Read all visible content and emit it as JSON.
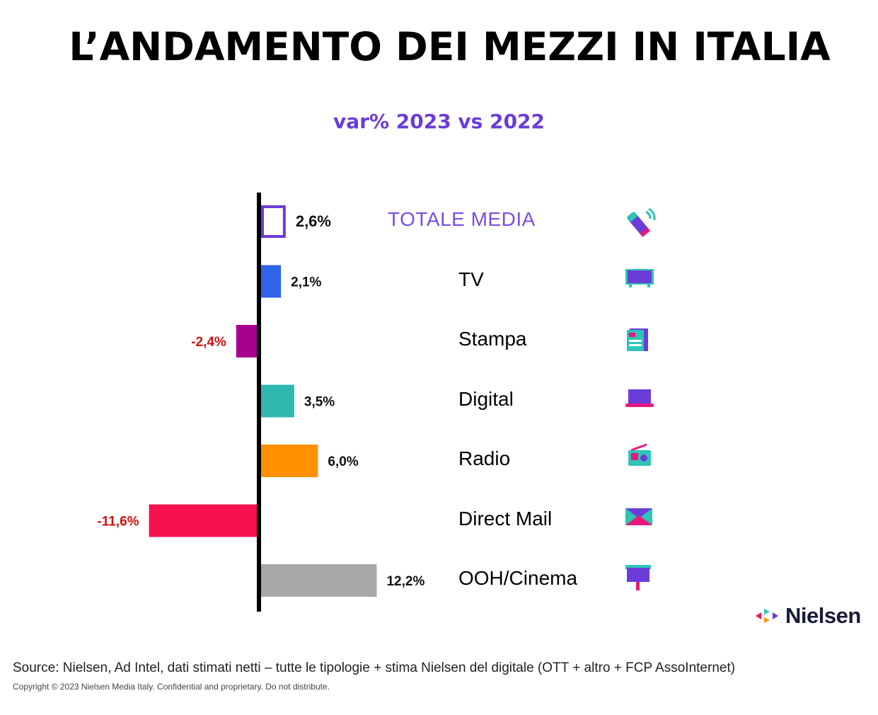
{
  "header": {
    "title": "L’ANDAMENTO DEI MEZZI IN ITALIA",
    "subtitle": "var% 2023 vs 2022"
  },
  "chart_data": {
    "type": "bar",
    "orientation": "horizontal",
    "categories": [
      "TOTALE MEDIA",
      "TV",
      "Stampa",
      "Digital",
      "Radio",
      "Direct Mail",
      "OOH/Cinema"
    ],
    "values": [
      2.6,
      2.1,
      -2.4,
      3.5,
      6.0,
      -11.6,
      12.2
    ],
    "value_labels": [
      "2,6%",
      "2,1%",
      "-2,4%",
      "3,5%",
      "6,0%",
      "-11,6%",
      "12,2%"
    ],
    "bar_colors": [
      "#ffffff",
      "#2f63e8",
      "#a8008f",
      "#2eb8b0",
      "#ff9100",
      "#f5124f",
      "#a8a8a8"
    ],
    "bar_outline": [
      "#6b3cd8",
      null,
      null,
      null,
      null,
      null,
      null
    ],
    "positive_label_color": "#111111",
    "negative_label_color": "#cc1111",
    "title": "L’ANDAMENTO DEI MEZZI IN ITALIA",
    "subtitle": "var% 2023 vs 2022",
    "xlabel": "",
    "ylabel": "",
    "grid": false
  },
  "icons": [
    "microphone-icon",
    "tv-icon",
    "newspaper-icon",
    "laptop-icon",
    "radio-icon",
    "envelope-icon",
    "billboard-icon"
  ],
  "colors": {
    "accent": "#6b3cd8",
    "teal": "#2ec4b6",
    "magenta": "#e8197a"
  },
  "logo": {
    "text": "Nielsen"
  },
  "footer": {
    "source": "Source: Nielsen, Ad Intel, dati stimati netti – tutte le tipologie + stima Nielsen del digitale (OTT  + altro +  FCP AssoInternet)",
    "copyright": "Copyright © 2023 Nielsen Media Italy. Confidential and proprietary. Do not distribute."
  }
}
